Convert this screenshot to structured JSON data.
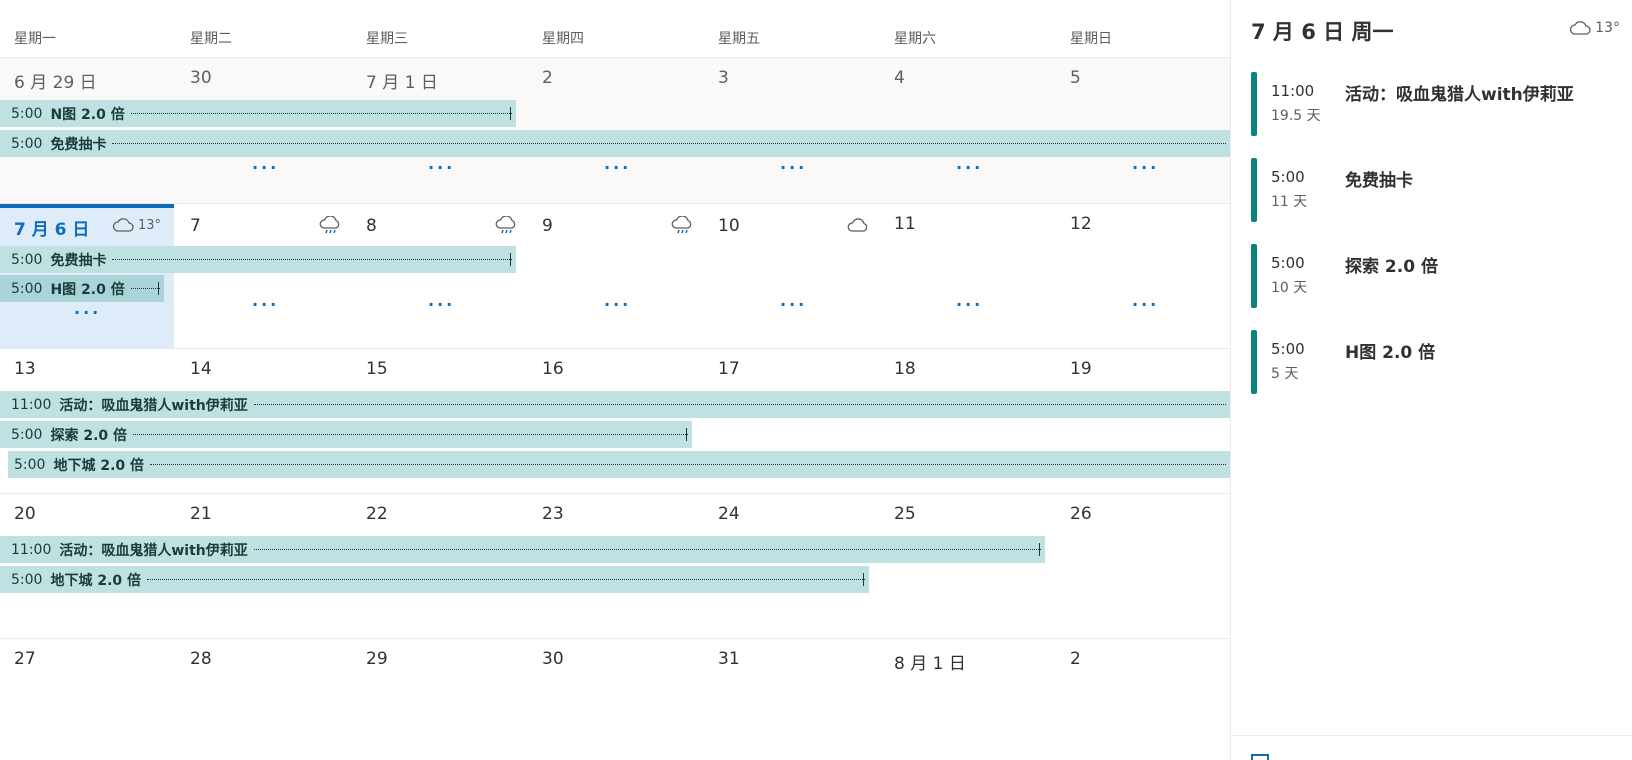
{
  "weekdays": [
    "星期一",
    "星期二",
    "星期三",
    "星期四",
    "星期五",
    "星期六",
    "星期日"
  ],
  "weeks": [
    {
      "days": [
        "6 月 29 日",
        "30",
        "7 月 1 日",
        "2",
        "3",
        "4",
        "5"
      ],
      "events": [
        {
          "time": "5:00",
          "title": "N图 2.0 倍"
        },
        {
          "time": "5:00",
          "title": "免费抽卡"
        }
      ],
      "more": "···"
    },
    {
      "today_label": "7 月 6 日",
      "today_temp": "13°",
      "days": [
        "7",
        "8",
        "9",
        "10",
        "11",
        "12"
      ],
      "weather": [
        "rain-cloud-icon",
        "rain-cloud-icon",
        "rain-cloud-icon",
        "cloud-icon"
      ],
      "events": [
        {
          "time": "5:00",
          "title": "免费抽卡"
        },
        {
          "time": "5:00",
          "title": "H图 2.0 倍"
        }
      ],
      "more": "···"
    },
    {
      "days": [
        "13",
        "14",
        "15",
        "16",
        "17",
        "18",
        "19"
      ],
      "events": [
        {
          "time": "11:00",
          "title": "活动：吸血鬼猎人with伊莉亚"
        },
        {
          "time": "5:00",
          "title": "探索 2.0 倍"
        },
        {
          "time": "5:00",
          "title": "地下城 2.0 倍"
        }
      ]
    },
    {
      "days": [
        "20",
        "21",
        "22",
        "23",
        "24",
        "25",
        "26"
      ],
      "events": [
        {
          "time": "11:00",
          "title": "活动：吸血鬼猎人with伊莉亚"
        },
        {
          "time": "5:00",
          "title": "地下城 2.0 倍"
        }
      ]
    },
    {
      "days": [
        "27",
        "28",
        "29",
        "30",
        "31",
        "8 月 1 日",
        "2"
      ]
    }
  ],
  "agenda": {
    "title": "7 月 6 日 周一",
    "temp": "13°",
    "items": [
      {
        "time": "11:00",
        "duration": "19.5 天",
        "title": "活动：吸血鬼猎人with伊莉亚"
      },
      {
        "time": "5:00",
        "duration": "11 天",
        "title": "免费抽卡"
      },
      {
        "time": "5:00",
        "duration": "10 天",
        "title": "探索 2.0 倍"
      },
      {
        "time": "5:00",
        "duration": "5 天",
        "title": "H图 2.0 倍"
      }
    ]
  },
  "colors": {
    "accent": "#0f6cbd",
    "event_bg": "#c0e1e1",
    "agenda_accent": "#0b827c"
  }
}
